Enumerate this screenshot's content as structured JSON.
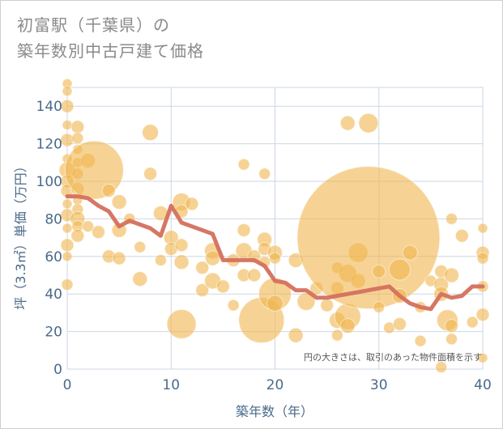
{
  "title_line1": "初富駅（千葉県）の",
  "title_line2": "築年数別中古戸建て価格",
  "chart_data": {
    "type": "scatter",
    "title": "初富駅（千葉県）の築年数別中古戸建て価格",
    "xlabel": "築年数（年）",
    "ylabel": "坪（3.3㎡）単価（万円）",
    "xlim": [
      0,
      40
    ],
    "ylim": [
      0,
      150
    ],
    "xticks": [
      "0",
      "10",
      "20",
      "30",
      "40"
    ],
    "yticks": [
      "0",
      "20",
      "40",
      "60",
      "80",
      "100",
      "120",
      "140"
    ],
    "grid": true,
    "note": "円の大きさは、取引のあった物件面積を示す",
    "colors": {
      "bubble": "#f0b64f",
      "line": "#d4705d",
      "grid": "#cdd7e3",
      "text": "#4a6a8a"
    },
    "bubbles": [
      {
        "x": 0,
        "y": 152,
        "s": 6
      },
      {
        "x": 0,
        "y": 148,
        "s": 6
      },
      {
        "x": 0,
        "y": 140,
        "s": 8
      },
      {
        "x": 0,
        "y": 130,
        "s": 6
      },
      {
        "x": 0,
        "y": 122,
        "s": 8
      },
      {
        "x": 0,
        "y": 112,
        "s": 6
      },
      {
        "x": 0,
        "y": 106,
        "s": 10
      },
      {
        "x": 0,
        "y": 100,
        "s": 8
      },
      {
        "x": 0,
        "y": 95,
        "s": 8
      },
      {
        "x": 0,
        "y": 88,
        "s": 6
      },
      {
        "x": 0,
        "y": 82,
        "s": 8
      },
      {
        "x": 0,
        "y": 75,
        "s": 6
      },
      {
        "x": 0,
        "y": 66,
        "s": 8
      },
      {
        "x": 0,
        "y": 60,
        "s": 6
      },
      {
        "x": 0,
        "y": 45,
        "s": 7
      },
      {
        "x": 1,
        "y": 129,
        "s": 8
      },
      {
        "x": 1,
        "y": 123,
        "s": 7
      },
      {
        "x": 1,
        "y": 117,
        "s": 6
      },
      {
        "x": 1,
        "y": 110,
        "s": 6
      },
      {
        "x": 1,
        "y": 104,
        "s": 7
      },
      {
        "x": 1,
        "y": 96,
        "s": 8
      },
      {
        "x": 1,
        "y": 90,
        "s": 6
      },
      {
        "x": 1,
        "y": 85,
        "s": 7
      },
      {
        "x": 1,
        "y": 80,
        "s": 9
      },
      {
        "x": 1,
        "y": 76,
        "s": 7
      },
      {
        "x": 1,
        "y": 71,
        "s": 8
      },
      {
        "x": 2,
        "y": 111,
        "s": 9
      },
      {
        "x": 2,
        "y": 76,
        "s": 7
      },
      {
        "x": 2.6,
        "y": 106,
        "s": 36
      },
      {
        "x": 3,
        "y": 73,
        "s": 8
      },
      {
        "x": 4,
        "y": 95,
        "s": 8
      },
      {
        "x": 4,
        "y": 60,
        "s": 8
      },
      {
        "x": 5,
        "y": 89,
        "s": 9
      },
      {
        "x": 5,
        "y": 74,
        "s": 9
      },
      {
        "x": 5,
        "y": 59,
        "s": 8
      },
      {
        "x": 6,
        "y": 80,
        "s": 7
      },
      {
        "x": 7,
        "y": 65,
        "s": 7
      },
      {
        "x": 7,
        "y": 48,
        "s": 9
      },
      {
        "x": 8,
        "y": 126,
        "s": 10
      },
      {
        "x": 8,
        "y": 104,
        "s": 8
      },
      {
        "x": 9,
        "y": 83,
        "s": 9
      },
      {
        "x": 9,
        "y": 58,
        "s": 7
      },
      {
        "x": 10,
        "y": 70,
        "s": 9
      },
      {
        "x": 10,
        "y": 64,
        "s": 8
      },
      {
        "x": 11,
        "y": 89,
        "s": 11
      },
      {
        "x": 11,
        "y": 84,
        "s": 8
      },
      {
        "x": 11,
        "y": 66,
        "s": 8
      },
      {
        "x": 11,
        "y": 57,
        "s": 9
      },
      {
        "x": 11,
        "y": 24,
        "s": 18
      },
      {
        "x": 12,
        "y": 88,
        "s": 8
      },
      {
        "x": 13,
        "y": 54,
        "s": 8
      },
      {
        "x": 13,
        "y": 42,
        "s": 8
      },
      {
        "x": 14,
        "y": 63,
        "s": 10
      },
      {
        "x": 14,
        "y": 59,
        "s": 9
      },
      {
        "x": 14,
        "y": 47,
        "s": 10
      },
      {
        "x": 15,
        "y": 44,
        "s": 8
      },
      {
        "x": 16,
        "y": 58,
        "s": 8
      },
      {
        "x": 16,
        "y": 34,
        "s": 7
      },
      {
        "x": 17,
        "y": 109,
        "s": 7
      },
      {
        "x": 17,
        "y": 74,
        "s": 8
      },
      {
        "x": 17,
        "y": 63,
        "s": 10
      },
      {
        "x": 17,
        "y": 50,
        "s": 8
      },
      {
        "x": 18,
        "y": 60,
        "s": 8
      },
      {
        "x": 18,
        "y": 50,
        "s": 8
      },
      {
        "x": 18.7,
        "y": 26,
        "s": 28
      },
      {
        "x": 19,
        "y": 104,
        "s": 7
      },
      {
        "x": 19,
        "y": 69,
        "s": 9
      },
      {
        "x": 19,
        "y": 64,
        "s": 8
      },
      {
        "x": 19,
        "y": 57,
        "s": 7
      },
      {
        "x": 20,
        "y": 62,
        "s": 9
      },
      {
        "x": 20,
        "y": 59,
        "s": 7
      },
      {
        "x": 20,
        "y": 40,
        "s": 20
      },
      {
        "x": 20,
        "y": 35,
        "s": 10
      },
      {
        "x": 22,
        "y": 58,
        "s": 9
      },
      {
        "x": 22,
        "y": 18,
        "s": 9
      },
      {
        "x": 23,
        "y": 36,
        "s": 11
      },
      {
        "x": 24,
        "y": 43,
        "s": 8
      },
      {
        "x": 25,
        "y": 34,
        "s": 8
      },
      {
        "x": 26,
        "y": 54,
        "s": 7
      },
      {
        "x": 26,
        "y": 43,
        "s": 8
      },
      {
        "x": 26,
        "y": 26,
        "s": 10
      },
      {
        "x": 26,
        "y": 18,
        "s": 7
      },
      {
        "x": 27,
        "y": 131,
        "s": 9
      },
      {
        "x": 27,
        "y": 51,
        "s": 11
      },
      {
        "x": 27,
        "y": 28,
        "s": 16
      },
      {
        "x": 27,
        "y": 23,
        "s": 9
      },
      {
        "x": 28,
        "y": 62,
        "s": 12
      },
      {
        "x": 28,
        "y": 47,
        "s": 9
      },
      {
        "x": 29,
        "y": 131,
        "s": 12
      },
      {
        "x": 29,
        "y": 70,
        "s": 88
      },
      {
        "x": 30,
        "y": 52,
        "s": 8
      },
      {
        "x": 30,
        "y": 33,
        "s": 7
      },
      {
        "x": 31,
        "y": 22,
        "s": 7
      },
      {
        "x": 32,
        "y": 53,
        "s": 13
      },
      {
        "x": 32,
        "y": 39,
        "s": 9
      },
      {
        "x": 32,
        "y": 24,
        "s": 8
      },
      {
        "x": 33,
        "y": 62,
        "s": 9
      },
      {
        "x": 34,
        "y": 33,
        "s": 7
      },
      {
        "x": 34,
        "y": 15,
        "s": 7
      },
      {
        "x": 35,
        "y": 47,
        "s": 7
      },
      {
        "x": 36,
        "y": 52,
        "s": 8
      },
      {
        "x": 36,
        "y": 45,
        "s": 9
      },
      {
        "x": 36,
        "y": 40,
        "s": 9
      },
      {
        "x": 36,
        "y": 1,
        "s": 7
      },
      {
        "x": 36.6,
        "y": 26,
        "s": 13
      },
      {
        "x": 37,
        "y": 80,
        "s": 7
      },
      {
        "x": 37,
        "y": 50,
        "s": 9
      },
      {
        "x": 37,
        "y": 23,
        "s": 8
      },
      {
        "x": 37,
        "y": 16,
        "s": 7
      },
      {
        "x": 38,
        "y": 71,
        "s": 8
      },
      {
        "x": 39,
        "y": 25,
        "s": 7
      },
      {
        "x": 40,
        "y": 75,
        "s": 6
      },
      {
        "x": 40,
        "y": 62,
        "s": 8
      },
      {
        "x": 40,
        "y": 59,
        "s": 7
      },
      {
        "x": 40,
        "y": 44,
        "s": 7
      },
      {
        "x": 40,
        "y": 29,
        "s": 8
      },
      {
        "x": 40,
        "y": 6,
        "s": 6
      }
    ],
    "series": [
      {
        "x": [
          0,
          1,
          2,
          3,
          4,
          5,
          6,
          7,
          8,
          9,
          10,
          11,
          12,
          13,
          14,
          15,
          16,
          17,
          18,
          19,
          20,
          21,
          22,
          23,
          24,
          25,
          26,
          27,
          28,
          29,
          30,
          31,
          32,
          33,
          34,
          35,
          36,
          37,
          38,
          39,
          40
        ],
        "values": [
          92,
          92,
          91,
          87,
          84,
          76,
          79,
          77,
          75,
          71,
          87,
          78,
          76,
          74,
          72,
          58,
          58,
          58,
          58,
          55,
          47,
          46,
          42,
          42,
          38,
          38,
          39,
          40,
          41,
          42,
          43,
          44,
          39,
          35,
          33,
          32,
          40,
          38,
          39,
          44,
          44
        ]
      }
    ]
  }
}
